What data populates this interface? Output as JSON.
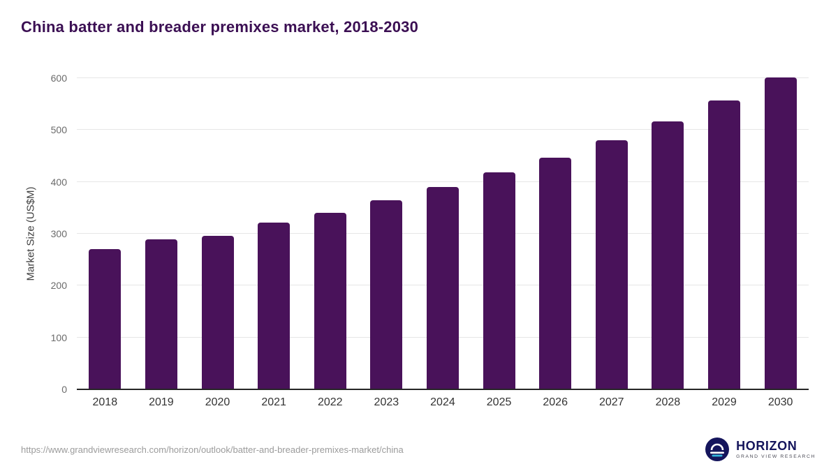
{
  "title": "China batter and breader premixes market, 2018-2030",
  "source_url": "https://www.grandviewresearch.com/horizon/outlook/batter-and-breader-premixes-market/china",
  "logo": {
    "name": "HORIZON",
    "sub": "GRAND VIEW RESEARCH"
  },
  "colors": {
    "bar": "#49125A",
    "title": "#3B0F53",
    "grid": "#e6e6e6",
    "axis": "#262626",
    "tick": "#6b6b6b",
    "xlabel": "#333333",
    "url": "#9b9b9b",
    "logo_navy": "#15155C",
    "logo_teal": "#35B7DF"
  },
  "chart_data": {
    "type": "bar",
    "title": "China batter and breader premixes market, 2018-2030",
    "categories": [
      "2018",
      "2019",
      "2020",
      "2021",
      "2022",
      "2023",
      "2024",
      "2025",
      "2026",
      "2027",
      "2028",
      "2029",
      "2030"
    ],
    "values": [
      270,
      289,
      296,
      321,
      341,
      364,
      390,
      418,
      446,
      480,
      516,
      557,
      602
    ],
    "xlabel": "",
    "ylabel": "Market Size (US$M)",
    "ylim": [
      0,
      600
    ],
    "yticks": [
      0,
      100,
      200,
      300,
      400,
      500,
      600
    ],
    "grid": true,
    "legend": false,
    "bar_color": "#49125A"
  }
}
